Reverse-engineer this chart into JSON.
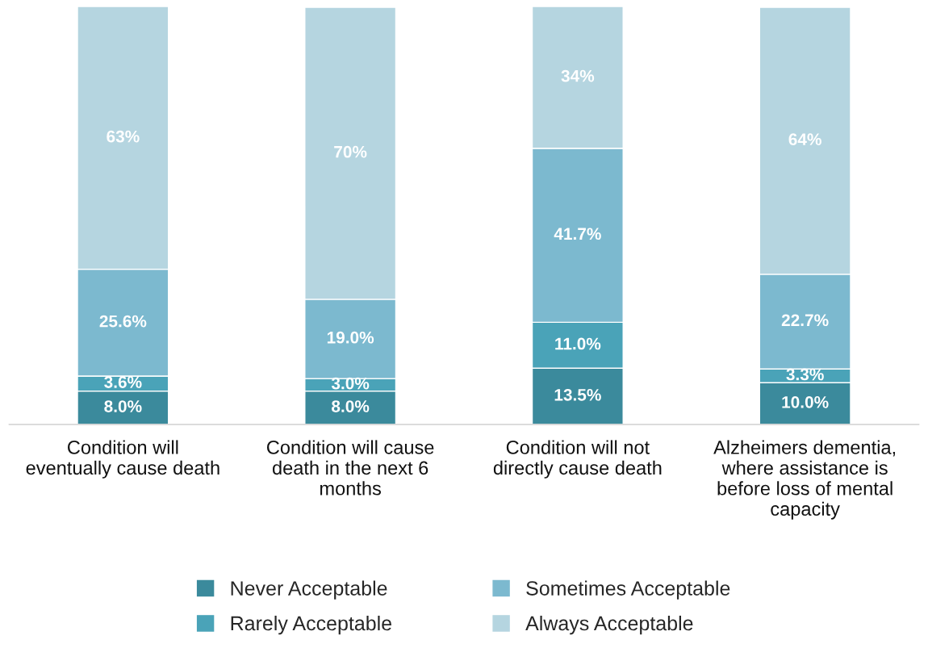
{
  "chart_data": {
    "type": "bar",
    "stacked": true,
    "legend": "bottom",
    "grid": false,
    "categories": [
      "Condition will\neventually cause death",
      "Condition will cause\ndeath in the next 6\nmonths",
      "Condition will not\ndirectly cause death",
      "Alzheimers dementia,\nwhere assistance is\nbefore loss of mental\ncapacity"
    ],
    "series": [
      {
        "name": "Never Acceptable",
        "color": "#3b8a9c",
        "values": [
          8.0,
          8.0,
          13.5,
          10.0
        ],
        "value_labels": [
          "8.0%",
          "8.0%",
          "13.5%",
          "10.0%"
        ]
      },
      {
        "name": "Rarely Acceptable",
        "color": "#4aa3b8",
        "values": [
          3.6,
          3.0,
          11.0,
          3.3
        ],
        "value_labels": [
          "3.6%",
          "3.0%",
          "11.0%",
          "3.3%"
        ]
      },
      {
        "name": "Sometimes Acceptable",
        "color": "#7cb9cf",
        "values": [
          25.6,
          19.0,
          41.7,
          22.7
        ],
        "value_labels": [
          "25.6%",
          "19.0%",
          "41.7%",
          "22.7%"
        ]
      },
      {
        "name": "Always Acceptable",
        "color": "#b5d5e0",
        "values": [
          63,
          70,
          34,
          64
        ],
        "value_labels": [
          "63%",
          "70%",
          "34%",
          "64%"
        ]
      }
    ]
  }
}
